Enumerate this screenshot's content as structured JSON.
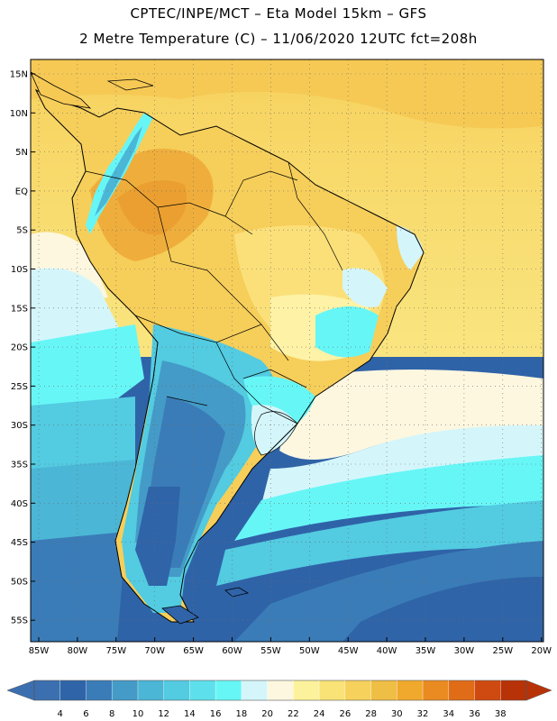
{
  "header": {
    "line1": "CPTEC/INPE/MCT –  Eta Model 15km – GFS",
    "line2": "2 Metre Temperature (C) – 11/06/2020 12UTC fct=208h"
  },
  "map": {
    "lat_labels": [
      "15N",
      "10N",
      "5N",
      "EQ",
      "5S",
      "10S",
      "15S",
      "20S",
      "25S",
      "30S",
      "35S",
      "40S",
      "45S",
      "50S",
      "55S"
    ],
    "lon_labels": [
      "85W",
      "80W",
      "75W",
      "70W",
      "65W",
      "60W",
      "55W",
      "50W",
      "45W",
      "40W",
      "35W",
      "30W",
      "25W",
      "20W"
    ]
  },
  "legend": {
    "values": [
      "4",
      "6",
      "8",
      "10",
      "12",
      "14",
      "16",
      "18",
      "20",
      "22",
      "24",
      "26",
      "28",
      "30",
      "32",
      "34",
      "36",
      "38"
    ],
    "colors": [
      "#3b6fb0",
      "#2f64a8",
      "#3a7cb8",
      "#449bc7",
      "#4bb6d6",
      "#53cbe1",
      "#5de0ec",
      "#67f6f6",
      "#d4f6fb",
      "#fdf7e0",
      "#fdf29c",
      "#f9e276",
      "#f6d15c",
      "#efbe45",
      "#f0a92c",
      "#ea8b21",
      "#e06c18",
      "#cf4a10",
      "#b83208"
    ],
    "low_arrow_color": "#3b6fb0",
    "high_arrow_color": "#b83208"
  }
}
